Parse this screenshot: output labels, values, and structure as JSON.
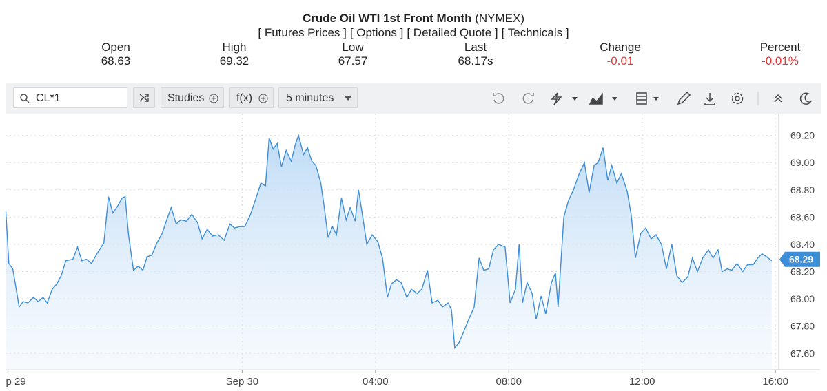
{
  "header": {
    "title": "Crude Oil WTI 1st Front Month",
    "exchange": "(NYMEX)",
    "links": [
      "[ Futures Prices ]",
      "[ Options ]",
      "[ Detailed Quote ]",
      "[ Technicals ]"
    ]
  },
  "quote": [
    {
      "label": "Open",
      "value": "68.63"
    },
    {
      "label": "High",
      "value": "69.32"
    },
    {
      "label": "Low",
      "value": "67.57"
    },
    {
      "label": "Last",
      "value": "68.17s"
    },
    {
      "label": "Change",
      "value": "-0.01"
    },
    {
      "label": "Percent",
      "value": "-0.01%"
    }
  ],
  "toolbar": {
    "symbol": "CL*1",
    "studies": "Studies",
    "fx": "f(x)",
    "interval": "5 minutes"
  },
  "chart_data": {
    "type": "area",
    "color": "#3d8ed8",
    "x": [
      -7.09,
      -7.0,
      -6.88,
      -6.69,
      -6.57,
      -6.43,
      -6.26,
      -6.12,
      -5.97,
      -5.85,
      -5.7,
      -5.56,
      -5.43,
      -5.29,
      -5.08,
      -4.94,
      -4.81,
      -4.67,
      -4.52,
      -4.36,
      -4.15,
      -4.01,
      -3.88,
      -3.74,
      -3.6,
      -3.51,
      -3.41,
      -3.26,
      -3.12,
      -2.98,
      -2.85,
      -2.71,
      -2.56,
      -2.4,
      -2.25,
      -2.13,
      -1.98,
      -1.84,
      -1.67,
      -1.51,
      -1.34,
      -1.2,
      -1.05,
      -0.89,
      -0.72,
      -0.54,
      -0.37,
      -0.23,
      -0.08,
      0.08,
      0.25,
      0.43,
      0.56,
      0.7,
      0.81,
      0.93,
      1.05,
      1.18,
      1.32,
      1.47,
      1.59,
      1.69,
      1.84,
      1.96,
      2.09,
      2.21,
      2.36,
      2.46,
      2.58,
      2.71,
      2.83,
      2.98,
      3.12,
      3.24,
      3.39,
      3.49,
      3.62,
      3.74,
      3.9,
      4.07,
      4.21,
      4.36,
      4.48,
      4.63,
      4.77,
      4.94,
      5.08,
      5.25,
      5.39,
      5.56,
      5.7,
      5.87,
      6.01,
      6.18,
      6.28,
      6.38,
      6.51,
      6.65,
      6.8,
      6.96,
      7.11,
      7.25,
      7.4,
      7.54,
      7.69,
      7.89,
      8.04,
      8.2,
      8.31,
      8.41,
      8.55,
      8.7,
      8.82,
      8.97,
      9.11,
      9.28,
      9.4,
      9.48,
      9.65,
      9.79,
      9.94,
      10.1,
      10.27,
      10.41,
      10.56,
      10.68,
      10.83,
      10.97,
      11.09,
      11.24,
      11.38,
      11.55,
      11.67,
      11.8,
      11.96,
      12.11,
      12.27,
      12.42,
      12.58,
      12.73,
      12.89,
      13.04,
      13.2,
      13.37,
      13.51,
      13.66,
      13.82,
      13.99,
      14.13,
      14.28,
      14.4,
      14.55,
      14.69,
      14.85,
      15.02,
      15.16,
      15.33,
      15.47,
      15.6,
      15.73,
      15.89
    ],
    "values": [
      68.64,
      68.26,
      68.22,
      67.94,
      67.98,
      67.97,
      68.01,
      67.98,
      68.01,
      67.97,
      68.07,
      68.11,
      68.17,
      68.28,
      68.29,
      68.38,
      68.28,
      68.29,
      68.26,
      68.33,
      68.41,
      68.75,
      68.63,
      68.68,
      68.74,
      68.75,
      68.47,
      68.21,
      68.24,
      68.21,
      68.31,
      68.32,
      68.41,
      68.48,
      68.59,
      68.67,
      68.55,
      68.58,
      68.57,
      68.62,
      68.56,
      68.44,
      68.51,
      68.46,
      68.47,
      68.43,
      68.55,
      68.52,
      68.53,
      68.53,
      68.62,
      68.75,
      68.85,
      68.83,
      69.18,
      69.1,
      69.14,
      68.97,
      69.09,
      69.01,
      69.13,
      69.2,
      69.06,
      69.11,
      69.01,
      68.98,
      68.85,
      68.68,
      68.45,
      68.53,
      68.47,
      68.74,
      68.58,
      68.67,
      68.57,
      68.8,
      68.6,
      68.4,
      68.47,
      68.42,
      68.3,
      68.01,
      68.11,
      68.14,
      68.12,
      68.01,
      68.07,
      68.04,
      68.07,
      68.21,
      67.97,
      67.99,
      67.94,
      67.97,
      67.92,
      67.64,
      67.68,
      67.76,
      67.85,
      67.94,
      68.3,
      68.21,
      68.22,
      68.36,
      68.4,
      68.38,
      67.97,
      68.07,
      68.4,
      67.97,
      68.12,
      68.04,
      67.85,
      68.02,
      67.89,
      68.12,
      68.19,
      67.94,
      68.6,
      68.72,
      68.8,
      68.91,
      69.0,
      68.78,
      68.98,
      69.0,
      69.11,
      68.87,
      68.98,
      68.85,
      68.92,
      68.79,
      68.62,
      68.3,
      68.48,
      68.52,
      68.44,
      68.47,
      68.4,
      68.22,
      68.4,
      68.17,
      68.12,
      68.16,
      68.3,
      68.2,
      68.3,
      68.36,
      68.3,
      68.36,
      68.2,
      68.22,
      68.21,
      68.26,
      68.2,
      68.25,
      68.25,
      68.3,
      68.33,
      68.31,
      68.28
    ],
    "xlim": [
      -7.1,
      16.1
    ],
    "xticks": [
      {
        "value": -7.09,
        "label": "p 29"
      },
      {
        "value": 0,
        "label": "Sep 30"
      },
      {
        "value": 4,
        "label": "04:00"
      },
      {
        "value": 8,
        "label": "08:00"
      },
      {
        "value": 12,
        "label": "12:00"
      },
      {
        "value": 16,
        "label": "16:00"
      }
    ],
    "ylim": [
      67.48,
      69.36
    ],
    "yticks": [
      {
        "value": 67.6,
        "label": "67.60"
      },
      {
        "value": 67.8,
        "label": "67.80"
      },
      {
        "value": 68.0,
        "label": "68.00"
      },
      {
        "value": 68.2,
        "label": "68.20"
      },
      {
        "value": 68.4,
        "label": "68.40"
      },
      {
        "value": 68.6,
        "label": "68.60"
      },
      {
        "value": 68.8,
        "label": "68.80"
      },
      {
        "value": 69.0,
        "label": "69.00"
      },
      {
        "value": 69.2,
        "label": "69.20"
      }
    ],
    "last": {
      "value": 68.29,
      "label": "68.29"
    },
    "grid": true
  }
}
